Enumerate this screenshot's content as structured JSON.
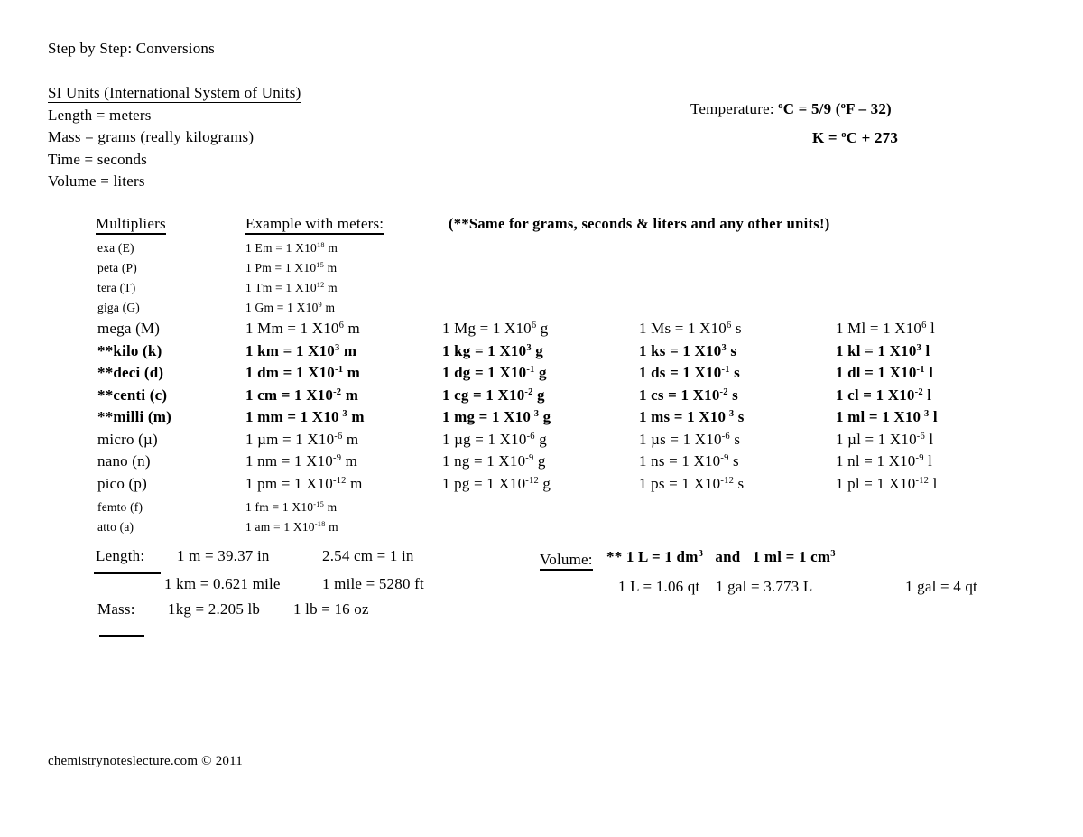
{
  "page": {
    "title": "Step by Step: Conversions"
  },
  "si_units": {
    "heading": "SI Units (International System of Units)",
    "lines": [
      "Length = meters",
      "Mass = grams (really kilograms)",
      "Time = seconds",
      "Volume = liters"
    ]
  },
  "temperature": {
    "label": "Temperature: ",
    "formula1": [
      {
        "sup": "o"
      },
      {
        "t": "C = 5/9 ("
      },
      {
        "sup": "o"
      },
      {
        "t": "F – 32)"
      }
    ],
    "formula2": [
      {
        "t": "K = "
      },
      {
        "sup": "o"
      },
      {
        "t": "C + 273"
      }
    ]
  },
  "table": {
    "headers": {
      "multipliers": "Multipliers",
      "examples": "Example with meters:",
      "note": "(**Same for grams, seconds & liters and any other units!)"
    },
    "rows": [
      {
        "name": "exa (E)",
        "size": "small",
        "bold": false,
        "meters": [
          {
            "t": "1 Em = 1 X10"
          },
          {
            "sup": "18"
          },
          {
            "t": " m"
          }
        ],
        "grams": null,
        "seconds": null,
        "liters": null
      },
      {
        "name": "peta (P)",
        "size": "small",
        "bold": false,
        "meters": [
          {
            "t": "1 Pm = 1 X10"
          },
          {
            "sup": "15"
          },
          {
            "t": " m"
          }
        ],
        "grams": null,
        "seconds": null,
        "liters": null
      },
      {
        "name": "tera (T)",
        "size": "small",
        "bold": false,
        "meters": [
          {
            "t": "1 Tm = 1 X10"
          },
          {
            "sup": "12"
          },
          {
            "t": " m"
          }
        ],
        "grams": null,
        "seconds": null,
        "liters": null
      },
      {
        "name": "giga (G)",
        "size": "small",
        "bold": false,
        "meters": [
          {
            "t": "1 Gm = 1 X10"
          },
          {
            "sup": "9"
          },
          {
            "t": " m"
          }
        ],
        "grams": null,
        "seconds": null,
        "liters": null
      },
      {
        "name": "mega (M)",
        "size": "large",
        "bold": false,
        "meters": [
          {
            "t": "1 Mm = 1 X10"
          },
          {
            "sup": "6"
          },
          {
            "t": " m"
          }
        ],
        "grams": [
          {
            "t": "1 Mg = 1 X10"
          },
          {
            "sup": "6"
          },
          {
            "t": " g"
          }
        ],
        "seconds": [
          {
            "t": "1 Ms = 1 X10"
          },
          {
            "sup": "6"
          },
          {
            "t": " s"
          }
        ],
        "liters": [
          {
            "t": "1 Ml = 1 X10"
          },
          {
            "sup": "6"
          },
          {
            "t": " l"
          }
        ]
      },
      {
        "name": "**kilo (k)",
        "size": "large",
        "bold": true,
        "meters": [
          {
            "t": "1 km = 1 X10"
          },
          {
            "sup": "3"
          },
          {
            "t": " m"
          }
        ],
        "grams": [
          {
            "t": "1 kg = 1 X10"
          },
          {
            "sup": "3"
          },
          {
            "t": " g"
          }
        ],
        "seconds": [
          {
            "t": "1 ks = 1 X10"
          },
          {
            "sup": "3"
          },
          {
            "t": " s"
          }
        ],
        "liters": [
          {
            "t": "1 kl = 1 X10"
          },
          {
            "sup": "3"
          },
          {
            "t": " l"
          }
        ]
      },
      {
        "name": "**deci (d)",
        "size": "large",
        "bold": true,
        "meters": [
          {
            "t": "1 dm = 1 X10"
          },
          {
            "sup": "-1"
          },
          {
            "t": " m"
          }
        ],
        "grams": [
          {
            "t": "1 dg = 1 X10"
          },
          {
            "sup": "-1"
          },
          {
            "t": " g"
          }
        ],
        "seconds": [
          {
            "t": "1 ds = 1 X10"
          },
          {
            "sup": "-1"
          },
          {
            "t": " s"
          }
        ],
        "liters": [
          {
            "t": "1 dl = 1 X10"
          },
          {
            "sup": "-1"
          },
          {
            "t": " l"
          }
        ]
      },
      {
        "name": "**centi (c)",
        "size": "large",
        "bold": true,
        "meters": [
          {
            "t": "1 cm = 1 X10"
          },
          {
            "sup": "-2"
          },
          {
            "t": " m"
          }
        ],
        "grams": [
          {
            "t": "1 cg = 1 X10"
          },
          {
            "sup": "-2"
          },
          {
            "t": " g"
          }
        ],
        "seconds": [
          {
            "t": "1 cs = 1 X10"
          },
          {
            "sup": "-2"
          },
          {
            "t": " s"
          }
        ],
        "liters": [
          {
            "t": "1 cl = 1 X10"
          },
          {
            "sup": "-2"
          },
          {
            "t": " l"
          }
        ]
      },
      {
        "name": "**milli (m)",
        "size": "large",
        "bold": true,
        "meters": [
          {
            "t": "1 mm = 1 X10"
          },
          {
            "sup": "-3"
          },
          {
            "t": " m"
          }
        ],
        "grams": [
          {
            "t": "1 mg = 1 X10"
          },
          {
            "sup": "-3"
          },
          {
            "t": " g"
          }
        ],
        "seconds": [
          {
            "t": "1 ms = 1 X10"
          },
          {
            "sup": "-3"
          },
          {
            "t": " s"
          }
        ],
        "liters": [
          {
            "t": "1 ml = 1 X10"
          },
          {
            "sup": "-3"
          },
          {
            "t": " l"
          }
        ]
      },
      {
        "name": "micro (µ)",
        "size": "large",
        "bold": false,
        "meters": [
          {
            "t": "1 µm = 1 X10"
          },
          {
            "sup": "-6"
          },
          {
            "t": " m"
          }
        ],
        "grams": [
          {
            "t": "1 µg = 1 X10"
          },
          {
            "sup": "-6"
          },
          {
            "t": " g"
          }
        ],
        "seconds": [
          {
            "t": "1 µs = 1 X10"
          },
          {
            "sup": "-6"
          },
          {
            "t": " s"
          }
        ],
        "liters": [
          {
            "t": "1 µl = 1 X10"
          },
          {
            "sup": "-6"
          },
          {
            "t": " l"
          }
        ]
      },
      {
        "name": "nano (n)",
        "size": "large",
        "bold": false,
        "meters": [
          {
            "t": "1 nm = 1 X10"
          },
          {
            "sup": "-9"
          },
          {
            "t": " m"
          }
        ],
        "grams": [
          {
            "t": "1 ng = 1 X10"
          },
          {
            "sup": "-9"
          },
          {
            "t": " g"
          }
        ],
        "seconds": [
          {
            "t": "1 ns = 1 X10"
          },
          {
            "sup": "-9"
          },
          {
            "t": " s"
          }
        ],
        "liters": [
          {
            "t": "1 nl = 1 X10"
          },
          {
            "sup": "-9"
          },
          {
            "t": " l"
          }
        ]
      },
      {
        "name": "pico (p)",
        "size": "pico",
        "bold": false,
        "meters": [
          {
            "t": "1 pm = 1 X10"
          },
          {
            "sup": "-12"
          },
          {
            "t": " m"
          }
        ],
        "grams": [
          {
            "t": "1 pg = 1 X10"
          },
          {
            "sup": "-12"
          },
          {
            "t": " g"
          }
        ],
        "seconds": [
          {
            "t": "1 ps = 1 X10"
          },
          {
            "sup": "-12"
          },
          {
            "t": " s"
          }
        ],
        "liters": [
          {
            "t": "1 pl = 1 X10"
          },
          {
            "sup": "-12"
          },
          {
            "t": " l"
          }
        ]
      },
      {
        "name": "femto (f)",
        "size": "small",
        "bold": false,
        "meters": [
          {
            "t": "1 fm = 1 X10"
          },
          {
            "sup": "-15"
          },
          {
            "t": " m"
          }
        ],
        "grams": null,
        "seconds": null,
        "liters": null
      },
      {
        "name": "atto (a)",
        "size": "small",
        "bold": false,
        "meters": [
          {
            "t": "1 am = 1 X10"
          },
          {
            "sup": "-18"
          },
          {
            "t": " m"
          }
        ],
        "grams": null,
        "seconds": null,
        "liters": null
      }
    ]
  },
  "length_mass": {
    "length_label": "Length:",
    "l1a": "1 m = 39.37 in",
    "l1b": "2.54 cm = 1 in",
    "l2a": "1 km = 0.621 mile",
    "l2b": "1 mile = 5280 ft",
    "mass_label": "Mass:",
    "m1a": "1kg = 2.205 lb",
    "m1b": "1 lb = 16 oz"
  },
  "volume": {
    "label": "Volume:",
    "line1": [
      {
        "t": "** 1 L = 1 dm"
      },
      {
        "sup": "3"
      },
      {
        "t": "   and   1 ml = 1 cm"
      },
      {
        "sup": "3"
      }
    ],
    "line2a": "1 L = 1.06 qt",
    "line2b": "1 gal = 3.773 L",
    "line2c": "1 gal = 4 qt"
  },
  "footer": {
    "credit": "chemistrynoteslecture.com © 2011"
  }
}
